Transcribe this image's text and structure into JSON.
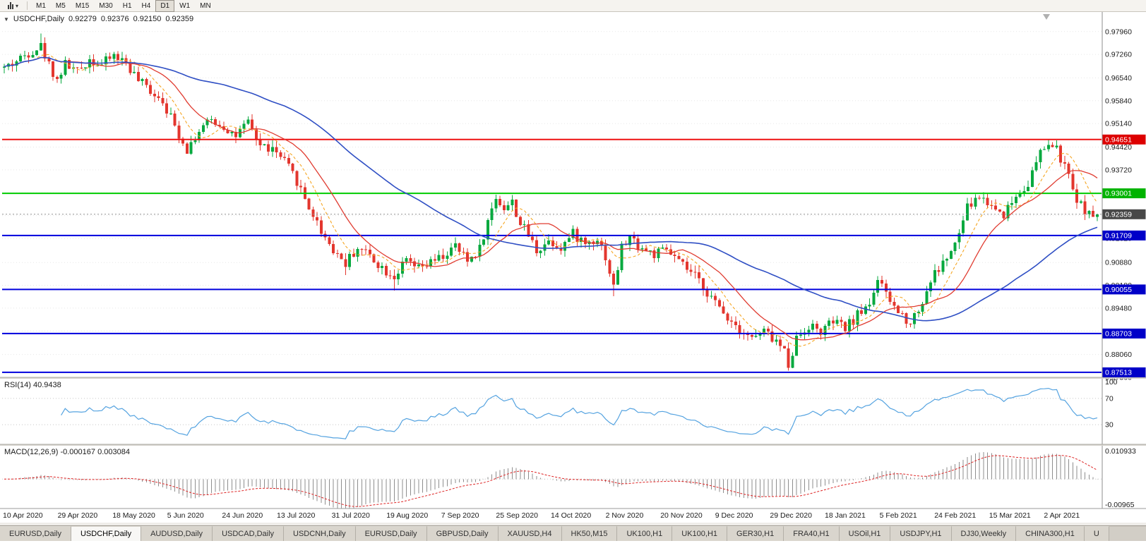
{
  "toolbar": {
    "timeframes": [
      "M1",
      "M5",
      "M15",
      "M30",
      "H1",
      "H4",
      "D1",
      "W1",
      "MN"
    ],
    "active_timeframe": "D1",
    "dropdown_icon": "▾"
  },
  "chart": {
    "header": {
      "collapse_icon": "▼",
      "symbol": "USDCHF,Daily",
      "open": "0.92279",
      "high": "0.92376",
      "low": "0.92150",
      "close": "0.92359"
    }
  },
  "chart_data": {
    "type": "candlestick",
    "title": "USDCHF,Daily",
    "y_axis": {
      "range": [
        0.8736,
        0.9856
      ],
      "ticks": [
        "0.97960",
        "0.97260",
        "0.96540",
        "0.95840",
        "0.95140",
        "0.94420",
        "0.93720",
        "0.93020",
        "0.92320",
        "0.91620",
        "0.90880",
        "0.90180",
        "0.89480",
        "0.88780",
        "0.88060",
        "0.87360"
      ]
    },
    "x_axis": {
      "labels": [
        "10 Apr 2020",
        "29 Apr 2020",
        "18 May 2020",
        "5 Jun 2020",
        "24 Jun 2020",
        "13 Jul 2020",
        "31 Jul 2020",
        "19 Aug 2020",
        "7 Sep 2020",
        "25 Sep 2020",
        "14 Oct 2020",
        "2 Nov 2020",
        "20 Nov 2020",
        "9 Dec 2020",
        "29 Dec 2020",
        "18 Jan 2021",
        "5 Feb 2021",
        "24 Feb 2021",
        "15 Mar 2021",
        "2 Apr 2021"
      ]
    },
    "horizontal_lines": [
      {
        "price": 0.94651,
        "label": "0.94651",
        "color": "#ee1111",
        "badge": "#dd0000"
      },
      {
        "price": 0.93001,
        "label": "0.93001",
        "color": "#00cc00",
        "badge": "#00b300"
      },
      {
        "price": 0.91709,
        "label": "0.91709",
        "color": "#0000dd",
        "badge": "#0000c8"
      },
      {
        "price": 0.90055,
        "label": "0.90055",
        "color": "#0000dd",
        "badge": "#0000c8"
      },
      {
        "price": 0.88703,
        "label": "0.88703",
        "color": "#0000dd",
        "badge": "#0000c8"
      },
      {
        "price": 0.87513,
        "label": "0.87513",
        "color": "#0000dd",
        "badge": "#0000c8"
      }
    ],
    "current_price": {
      "value": 0.92359,
      "label": "0.92359",
      "badge": "#484848"
    },
    "series": {
      "num_candles": 270,
      "price_path": [
        [
          0,
          0.9685
        ],
        [
          3,
          0.9705
        ],
        [
          6,
          0.9732
        ],
        [
          9,
          0.9752
        ],
        [
          11,
          0.9695
        ],
        [
          13,
          0.9648
        ],
        [
          15,
          0.9698
        ],
        [
          18,
          0.9672
        ],
        [
          21,
          0.9712
        ],
        [
          24,
          0.9694
        ],
        [
          27,
          0.9724
        ],
        [
          30,
          0.97
        ],
        [
          33,
          0.9645
        ],
        [
          36,
          0.9616
        ],
        [
          39,
          0.9588
        ],
        [
          42,
          0.9505
        ],
        [
          45,
          0.9436
        ],
        [
          48,
          0.9492
        ],
        [
          51,
          0.9524
        ],
        [
          54,
          0.9506
        ],
        [
          57,
          0.9476
        ],
        [
          60,
          0.9514
        ],
        [
          63,
          0.9448
        ],
        [
          66,
          0.9434
        ],
        [
          69,
          0.9396
        ],
        [
          72,
          0.9338
        ],
        [
          75,
          0.9258
        ],
        [
          78,
          0.9186
        ],
        [
          81,
          0.9128
        ],
        [
          84,
          0.9086
        ],
        [
          87,
          0.9134
        ],
        [
          90,
          0.9112
        ],
        [
          93,
          0.9072
        ],
        [
          96,
          0.9046
        ],
        [
          99,
          0.9092
        ],
        [
          102,
          0.9066
        ],
        [
          105,
          0.9086
        ],
        [
          108,
          0.9106
        ],
        [
          111,
          0.9136
        ],
        [
          114,
          0.9092
        ],
        [
          117,
          0.9132
        ],
        [
          119,
          0.9212
        ],
        [
          121,
          0.9288
        ],
        [
          123,
          0.9256
        ],
        [
          125,
          0.9272
        ],
        [
          127,
          0.9208
        ],
        [
          129,
          0.9172
        ],
        [
          131,
          0.9126
        ],
        [
          134,
          0.9156
        ],
        [
          137,
          0.9136
        ],
        [
          140,
          0.9176
        ],
        [
          143,
          0.9146
        ],
        [
          146,
          0.9164
        ],
        [
          148,
          0.9106
        ],
        [
          150,
          0.9012
        ],
        [
          152,
          0.9134
        ],
        [
          154,
          0.9164
        ],
        [
          157,
          0.9132
        ],
        [
          160,
          0.9112
        ],
        [
          163,
          0.9126
        ],
        [
          166,
          0.9088
        ],
        [
          169,
          0.9056
        ],
        [
          172,
          0.9016
        ],
        [
          175,
          0.8962
        ],
        [
          178,
          0.8922
        ],
        [
          181,
          0.8888
        ],
        [
          184,
          0.8856
        ],
        [
          187,
          0.8876
        ],
        [
          190,
          0.8846
        ],
        [
          192,
          0.8816
        ],
        [
          193,
          0.8778
        ],
        [
          195,
          0.8856
        ],
        [
          198,
          0.8896
        ],
        [
          201,
          0.8876
        ],
        [
          204,
          0.8906
        ],
        [
          207,
          0.8886
        ],
        [
          210,
          0.8926
        ],
        [
          213,
          0.8966
        ],
        [
          215,
          0.9036
        ],
        [
          217,
          0.8986
        ],
        [
          220,
          0.8936
        ],
        [
          223,
          0.8906
        ],
        [
          226,
          0.8966
        ],
        [
          228,
          0.9036
        ],
        [
          231,
          0.9086
        ],
        [
          234,
          0.9138
        ],
        [
          237,
          0.9256
        ],
        [
          240,
          0.9292
        ],
        [
          243,
          0.9262
        ],
        [
          246,
          0.9238
        ],
        [
          249,
          0.9292
        ],
        [
          252,
          0.9332
        ],
        [
          255,
          0.9422
        ],
        [
          257,
          0.9452
        ],
        [
          259,
          0.9432
        ],
        [
          261,
          0.9382
        ],
        [
          263,
          0.9312
        ],
        [
          265,
          0.9262
        ],
        [
          267,
          0.9242
        ],
        [
          269,
          0.92359
        ]
      ],
      "pins": [
        {
          "i": 9,
          "h": 0.979
        },
        {
          "i": 45,
          "l": 0.9425
        },
        {
          "i": 84,
          "l": 0.905
        },
        {
          "i": 96,
          "l": 0.9002
        },
        {
          "i": 121,
          "h": 0.9296
        },
        {
          "i": 150,
          "l": 0.8985
        },
        {
          "i": 193,
          "l": 0.8757
        },
        {
          "i": 215,
          "h": 0.9046
        },
        {
          "i": 257,
          "h": 0.94651
        },
        {
          "i": 266,
          "l": 0.9218
        }
      ],
      "last_candle": {
        "o": 0.92279,
        "h": 0.92376,
        "l": 0.9215,
        "c": 0.92359
      },
      "noise": {
        "seed": 42,
        "body": 0.0016,
        "wick": 0.002
      }
    },
    "moving_averages": [
      {
        "period": 8,
        "color": "#f5a623",
        "width": 1.1,
        "dash": "4,3"
      },
      {
        "period": 16,
        "color": "#e03c31",
        "width": 1.3,
        "dash": ""
      },
      {
        "period": 55,
        "color": "#2f4fc4",
        "width": 1.6,
        "dash": ""
      }
    ],
    "colors": {
      "up": "#07a93f",
      "down": "#e3362e",
      "grid": "#e7e7e7",
      "axis_text": "#1a1a1a"
    },
    "indicators": {
      "rsi": {
        "label": "RSI(14) 40.9438",
        "period": 14,
        "levels": [
          70,
          30
        ],
        "axis_labels": [
          "100",
          "70",
          "30"
        ],
        "range": [
          0,
          100
        ],
        "color": "#55a3e0"
      },
      "macd": {
        "label": "MACD(12,26,9) -0.000167 0.003084",
        "fast": 12,
        "slow": 26,
        "signal": 9,
        "axis_top": "0.010933",
        "axis_bottom": "-0.00965",
        "range": [
          -0.00965,
          0.010933
        ],
        "hist_color": "#8e8e8e",
        "signal_color": "#dd2222"
      }
    }
  },
  "tabs": {
    "items": [
      {
        "label": "EURUSD,Daily"
      },
      {
        "label": "USDCHF,Daily",
        "active": true
      },
      {
        "label": "AUDUSD,Daily"
      },
      {
        "label": "USDCAD,Daily"
      },
      {
        "label": "USDCNH,Daily"
      },
      {
        "label": "EURUSD,Daily"
      },
      {
        "label": "GBPUSD,Daily"
      },
      {
        "label": "XAUUSD,H4"
      },
      {
        "label": "HK50,M15"
      },
      {
        "label": "UK100,H1"
      },
      {
        "label": "UK100,H1"
      },
      {
        "label": "GER30,H1"
      },
      {
        "label": "FRA40,H1"
      },
      {
        "label": "USOil,H1"
      },
      {
        "label": "USDJPY,H1"
      },
      {
        "label": "DJ30,Weekly"
      },
      {
        "label": "CHINA300,H1"
      },
      {
        "label": "U"
      }
    ]
  }
}
